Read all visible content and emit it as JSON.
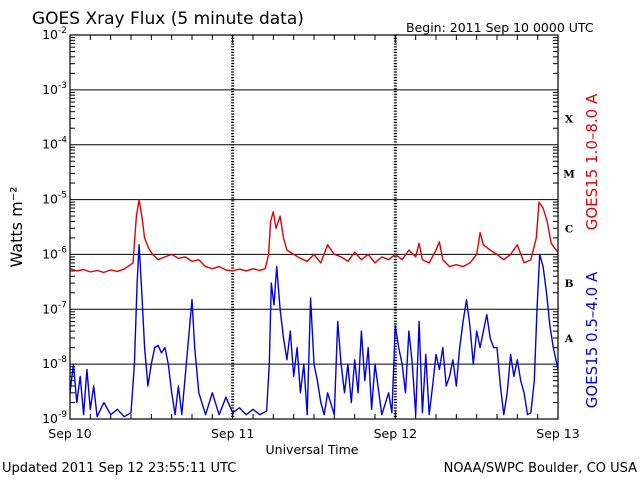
{
  "header": {
    "title": "GOES Xray Flux (5 minute data)",
    "begin": "Begin:  2011 Sep 10 0000 UTC"
  },
  "footer": {
    "updated": "Updated 2011 Sep 12 23:55:11 UTC",
    "credit": "NOAA/SWPC Boulder, CO USA"
  },
  "chart_data": {
    "type": "line",
    "title": "GOES Xray Flux (5 minute data)",
    "xlabel": "Universal Time",
    "ylabel": "Watts m⁻²",
    "yscale": "log",
    "ylim": [
      1e-09,
      0.01
    ],
    "xlim": [
      0,
      72
    ],
    "x_unit": "hours since 2011 Sep 10 0000 UTC",
    "x_tick_labels": [
      {
        "x": 0,
        "label": "Sep 10"
      },
      {
        "x": 24,
        "label": "Sep 11"
      },
      {
        "x": 48,
        "label": "Sep 12"
      },
      {
        "x": 72,
        "label": "Sep 13"
      }
    ],
    "y_tick_labels": [
      {
        "v": 0.01,
        "base": "10",
        "exp": "-2"
      },
      {
        "v": 0.001,
        "base": "10",
        "exp": "-3"
      },
      {
        "v": 0.0001,
        "base": "10",
        "exp": "-4"
      },
      {
        "v": 1e-05,
        "base": "10",
        "exp": "-5"
      },
      {
        "v": 1e-06,
        "base": "10",
        "exp": "-6"
      },
      {
        "v": 1e-07,
        "base": "10",
        "exp": "-7"
      },
      {
        "v": 1e-08,
        "base": "10",
        "exp": "-8"
      },
      {
        "v": 1e-09,
        "base": "10",
        "exp": "-9"
      }
    ],
    "flare_classes": [
      {
        "label": "X",
        "v": 0.0003
      },
      {
        "label": "M",
        "v": 3e-05
      },
      {
        "label": "C",
        "v": 3e-06
      },
      {
        "label": "B",
        "v": 3e-07
      },
      {
        "label": "A",
        "v": 3e-08
      }
    ],
    "grid": true,
    "series": [
      {
        "name": "GOES15 1.0–8.0 A",
        "color": "#e00000",
        "points": [
          [
            0,
            5.5e-07
          ],
          [
            1,
            5e-07
          ],
          [
            2,
            5.3e-07
          ],
          [
            3,
            4.8e-07
          ],
          [
            4,
            5.1e-07
          ],
          [
            5,
            4.7e-07
          ],
          [
            6,
            5.2e-07
          ],
          [
            7,
            4.9e-07
          ],
          [
            8,
            5.4e-07
          ],
          [
            9.3,
            7e-07
          ],
          [
            9.8,
            5e-06
          ],
          [
            10.2,
            1e-05
          ],
          [
            10.6,
            5e-06
          ],
          [
            11,
            2e-06
          ],
          [
            11.6,
            1.3e-06
          ],
          [
            12.2,
            1e-06
          ],
          [
            13,
            8e-07
          ],
          [
            14,
            9e-07
          ],
          [
            15,
            1e-06
          ],
          [
            16,
            8.5e-07
          ],
          [
            17,
            9e-07
          ],
          [
            18,
            7.5e-07
          ],
          [
            19,
            8e-07
          ],
          [
            20,
            6e-07
          ],
          [
            21,
            5.5e-07
          ],
          [
            22,
            6e-07
          ],
          [
            23,
            5.2e-07
          ],
          [
            24,
            5e-07
          ],
          [
            25,
            5.4e-07
          ],
          [
            26,
            5e-07
          ],
          [
            27,
            5.5e-07
          ],
          [
            28,
            5.1e-07
          ],
          [
            28.8,
            5.5e-07
          ],
          [
            29.3,
            1e-06
          ],
          [
            29.6,
            4e-06
          ],
          [
            30,
            6e-06
          ],
          [
            30.4,
            3e-06
          ],
          [
            31,
            5e-06
          ],
          [
            31.5,
            2e-06
          ],
          [
            32,
            1.2e-06
          ],
          [
            33,
            1e-06
          ],
          [
            34,
            8.5e-07
          ],
          [
            35,
            7.5e-07
          ],
          [
            36,
            1e-06
          ],
          [
            37,
            7e-07
          ],
          [
            38,
            1.5e-06
          ],
          [
            39,
            1e-06
          ],
          [
            40,
            9e-07
          ],
          [
            41,
            7.5e-07
          ],
          [
            42,
            1.1e-06
          ],
          [
            43,
            8e-07
          ],
          [
            44,
            1e-06
          ],
          [
            45,
            7e-07
          ],
          [
            46,
            9e-07
          ],
          [
            47,
            8e-07
          ],
          [
            48,
            1e-06
          ],
          [
            49,
            8e-07
          ],
          [
            50,
            1.2e-06
          ],
          [
            51,
            9e-07
          ],
          [
            51.5,
            1.6e-06
          ],
          [
            52,
            8e-07
          ],
          [
            53,
            7e-07
          ],
          [
            54,
            1.2e-06
          ],
          [
            54.5,
            1.7e-06
          ],
          [
            55,
            8e-07
          ],
          [
            56,
            6e-07
          ],
          [
            57,
            6.5e-07
          ],
          [
            58,
            6e-07
          ],
          [
            59,
            7e-07
          ],
          [
            60,
            1e-06
          ],
          [
            60.5,
            2.5e-06
          ],
          [
            61,
            1.5e-06
          ],
          [
            62,
            1.2e-06
          ],
          [
            63,
            1e-06
          ],
          [
            64,
            8e-07
          ],
          [
            65,
            1e-06
          ],
          [
            66,
            1.5e-06
          ],
          [
            67,
            7e-07
          ],
          [
            68,
            8e-07
          ],
          [
            68.8,
            2e-06
          ],
          [
            69.2,
            9e-06
          ],
          [
            69.8,
            7e-06
          ],
          [
            70.4,
            4e-06
          ],
          [
            71,
            1.6e-06
          ],
          [
            71.5,
            1.3e-06
          ],
          [
            72,
            1.1e-06
          ]
        ]
      },
      {
        "name": "GOES15 0.5–4.0 A",
        "color": "#0000e0",
        "points": [
          [
            0,
            3e-09
          ],
          [
            0.5,
            1e-08
          ],
          [
            1,
            2e-09
          ],
          [
            1.5,
            6e-09
          ],
          [
            2,
            1.2e-09
          ],
          [
            2.5,
            8e-09
          ],
          [
            3,
            1.5e-09
          ],
          [
            3.5,
            4e-09
          ],
          [
            4,
            1.1e-09
          ],
          [
            5,
            2e-09
          ],
          [
            6,
            1.2e-09
          ],
          [
            7,
            1.5e-09
          ],
          [
            8,
            1.1e-09
          ],
          [
            9,
            1.3e-09
          ],
          [
            9.5,
            1e-08
          ],
          [
            9.9,
            3e-07
          ],
          [
            10.2,
            1.5e-06
          ],
          [
            10.6,
            2e-07
          ],
          [
            11,
            2e-08
          ],
          [
            11.5,
            4e-09
          ],
          [
            12,
            1e-08
          ],
          [
            12.5,
            2e-08
          ],
          [
            13,
            2.2e-08
          ],
          [
            13.5,
            1.6e-08
          ],
          [
            14,
            2e-08
          ],
          [
            14.5,
            1e-08
          ],
          [
            15,
            3e-09
          ],
          [
            15.5,
            1.2e-09
          ],
          [
            16,
            4e-09
          ],
          [
            16.5,
            1.2e-09
          ],
          [
            17,
            6e-09
          ],
          [
            17.5,
            3e-08
          ],
          [
            18,
            1.5e-07
          ],
          [
            18.4,
            2e-08
          ],
          [
            19,
            3e-09
          ],
          [
            20,
            1.2e-09
          ],
          [
            21,
            3e-09
          ],
          [
            22,
            1.2e-09
          ],
          [
            23,
            2.5e-09
          ],
          [
            24,
            1.3e-09
          ],
          [
            25,
            1.6e-09
          ],
          [
            26,
            1.2e-09
          ],
          [
            27,
            1.5e-09
          ],
          [
            28,
            1.2e-09
          ],
          [
            29,
            1.4e-09
          ],
          [
            29.4,
            1e-08
          ],
          [
            29.7,
            3e-07
          ],
          [
            30.1,
            1.2e-07
          ],
          [
            30.5,
            6e-07
          ],
          [
            31,
            1e-07
          ],
          [
            31.5,
            3e-08
          ],
          [
            32,
            1.2e-08
          ],
          [
            32.5,
            4e-08
          ],
          [
            33,
            6e-09
          ],
          [
            33.5,
            2e-08
          ],
          [
            34,
            3e-09
          ],
          [
            34.5,
            1e-08
          ],
          [
            35,
            1.2e-09
          ],
          [
            35.5,
            1.6e-07
          ],
          [
            36,
            1e-08
          ],
          [
            36.5,
            5e-09
          ],
          [
            37,
            2e-09
          ],
          [
            37.5,
            1.2e-09
          ],
          [
            38,
            3e-09
          ],
          [
            39,
            1.2e-09
          ],
          [
            39.5,
            6e-08
          ],
          [
            40,
            1e-08
          ],
          [
            40.5,
            3e-09
          ],
          [
            41,
            1e-08
          ],
          [
            41.5,
            2e-09
          ],
          [
            42,
            1.2e-08
          ],
          [
            42.5,
            3e-09
          ],
          [
            43,
            4e-08
          ],
          [
            43.5,
            5e-09
          ],
          [
            44,
            2e-08
          ],
          [
            44.5,
            1.5e-09
          ],
          [
            45,
            1e-08
          ],
          [
            46,
            1.2e-09
          ],
          [
            47,
            3e-09
          ],
          [
            47.5,
            1.3e-09
          ],
          [
            48,
            5e-08
          ],
          [
            48.5,
            2e-08
          ],
          [
            49,
            1e-08
          ],
          [
            49.5,
            3e-09
          ],
          [
            50,
            4e-08
          ],
          [
            50.5,
            1e-08
          ],
          [
            51,
            1.2e-09
          ],
          [
            51.5,
            6e-08
          ],
          [
            52,
            1.3e-09
          ],
          [
            52.5,
            1.5e-08
          ],
          [
            53,
            1.2e-09
          ],
          [
            53.5,
            4e-09
          ],
          [
            54,
            1.5e-08
          ],
          [
            54.5,
            8e-09
          ],
          [
            55,
            2e-08
          ],
          [
            55.5,
            4e-09
          ],
          [
            56,
            6e-09
          ],
          [
            56.5,
            1.2e-08
          ],
          [
            57,
            4e-09
          ],
          [
            57.5,
            2e-08
          ],
          [
            58,
            6e-08
          ],
          [
            58.5,
            1.5e-07
          ],
          [
            59,
            5e-08
          ],
          [
            59.5,
            1e-08
          ],
          [
            60,
            4e-08
          ],
          [
            60.5,
            2e-08
          ],
          [
            61,
            4e-08
          ],
          [
            61.5,
            8e-08
          ],
          [
            62,
            3e-08
          ],
          [
            62.5,
            2e-08
          ],
          [
            63,
            2e-08
          ],
          [
            63.5,
            4e-09
          ],
          [
            64,
            1.2e-09
          ],
          [
            64.5,
            3e-09
          ],
          [
            65,
            1.5e-08
          ],
          [
            65.5,
            6e-09
          ],
          [
            66,
            1.2e-08
          ],
          [
            66.5,
            5e-09
          ],
          [
            67,
            3e-09
          ],
          [
            67.5,
            1.2e-09
          ],
          [
            68,
            1.3e-09
          ],
          [
            68.5,
            5e-09
          ],
          [
            68.9,
            1e-07
          ],
          [
            69.3,
            1e-06
          ],
          [
            69.8,
            6e-07
          ],
          [
            70.3,
            2e-07
          ],
          [
            70.8,
            5e-08
          ],
          [
            71.3,
            2e-08
          ],
          [
            72,
            8e-09
          ]
        ]
      }
    ]
  }
}
